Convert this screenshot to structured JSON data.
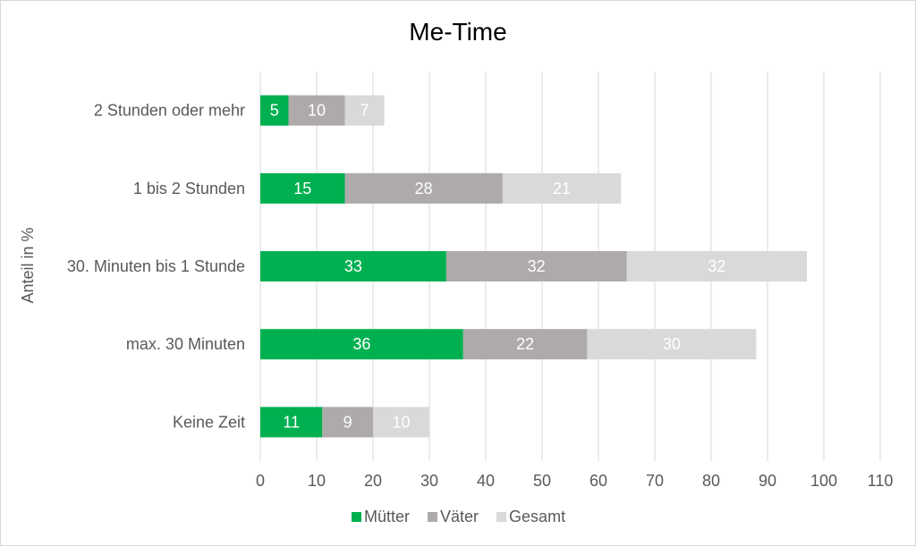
{
  "chart_data": {
    "type": "bar",
    "orientation": "horizontal",
    "stacked": true,
    "title": "Me-Time",
    "ylabel": "Anteil in %",
    "xlabel": "",
    "categories": [
      "2 Stunden oder mehr",
      "1 bis 2 Stunden",
      "30. Minuten bis 1 Stunde",
      "max. 30 Minuten",
      "Keine Zeit"
    ],
    "series": [
      {
        "name": "Mütter",
        "color": "#00b050",
        "values": [
          5,
          15,
          33,
          36,
          11
        ]
      },
      {
        "name": "Väter",
        "color": "#aeaaaa",
        "values": [
          10,
          28,
          32,
          22,
          9
        ]
      },
      {
        "name": "Gesamt",
        "color": "#d9d9d9",
        "values": [
          7,
          21,
          32,
          30,
          10
        ]
      }
    ],
    "xlim": [
      0,
      110
    ],
    "xticks": [
      "0",
      "10",
      "20",
      "30",
      "40",
      "50",
      "60",
      "70",
      "80",
      "90",
      "100",
      "110"
    ],
    "grid": "vertical",
    "legend_position": "bottom",
    "data_labels": true
  }
}
